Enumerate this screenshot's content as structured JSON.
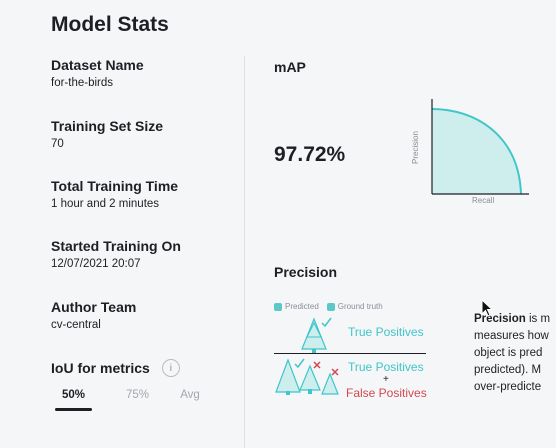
{
  "page_title": "Model Stats",
  "stats": [
    {
      "label": "Dataset Name",
      "value": "for-the-birds"
    },
    {
      "label": "Training Set Size",
      "value": "70"
    },
    {
      "label": "Total Training Time",
      "value": "1 hour and 2 minutes"
    },
    {
      "label": "Started Training On",
      "value": "12/07/2021 20:07"
    },
    {
      "label": "Author Team",
      "value": "cv-central"
    }
  ],
  "iou": {
    "label": "IoU for metrics",
    "info_glyph": "i",
    "tabs": [
      "50%",
      "75%",
      "Avg"
    ],
    "selected": "50%"
  },
  "map": {
    "title": "mAP",
    "value": "97.72%",
    "chart": {
      "y_label": "Precision",
      "x_label": "Recall"
    }
  },
  "precision": {
    "title": "Precision",
    "legend": [
      "Predicted",
      "Ground truth"
    ],
    "true_positives": "True Positives",
    "plus": "+",
    "false_positives": "False Positives",
    "description_lines": [
      {
        "bold": "Precision",
        "rest": " is m"
      },
      {
        "bold": "",
        "rest": "measures how"
      },
      {
        "bold": "",
        "rest": "object is pred"
      },
      {
        "bold": "",
        "rest": "predicted). M"
      },
      {
        "bold": "",
        "rest": "over-predicte"
      }
    ]
  },
  "colors": {
    "teal": "#5cc8c8",
    "teal_text": "#3ec6c8",
    "red": "#d2494f"
  }
}
